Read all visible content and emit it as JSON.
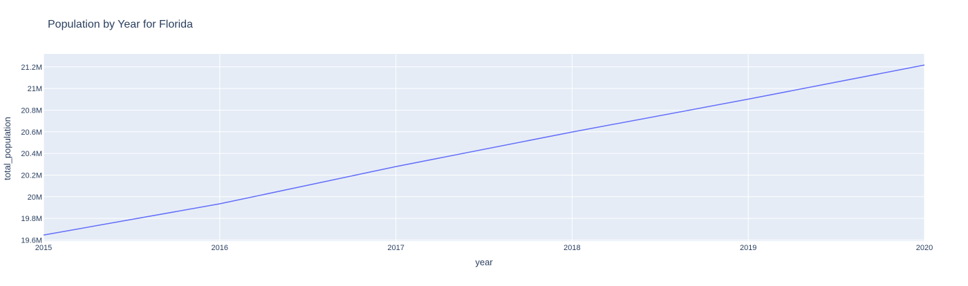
{
  "chart_data": {
    "type": "line",
    "title": "Population by Year for Florida",
    "xlabel": "year",
    "ylabel": "total_population",
    "x": [
      2015,
      2016,
      2017,
      2018,
      2019,
      2020
    ],
    "series": [
      {
        "values": [
          19645772,
          19934451,
          20278447,
          20598139,
          20901636,
          21216924
        ]
      }
    ],
    "xlim": [
      2015,
      2020
    ],
    "ylim": [
      19590000,
      21320000
    ],
    "x_ticks": [
      2015,
      2016,
      2017,
      2018,
      2019,
      2020
    ],
    "x_tick_labels": [
      "2015",
      "2016",
      "2017",
      "2018",
      "2019",
      "2020"
    ],
    "y_ticks": [
      19600000,
      19800000,
      20000000,
      20200000,
      20400000,
      20600000,
      20800000,
      21000000,
      21200000
    ],
    "y_tick_labels": [
      "19.6M",
      "19.8M",
      "20M",
      "20.2M",
      "20.4M",
      "20.6M",
      "20.8M",
      "21M",
      "21.2M"
    ],
    "grid": true,
    "legend": false,
    "colors": {
      "plot_bg": "#e5ecf6",
      "grid": "#ffffff",
      "line": "#636efa",
      "text": "#2a3f5f"
    }
  }
}
